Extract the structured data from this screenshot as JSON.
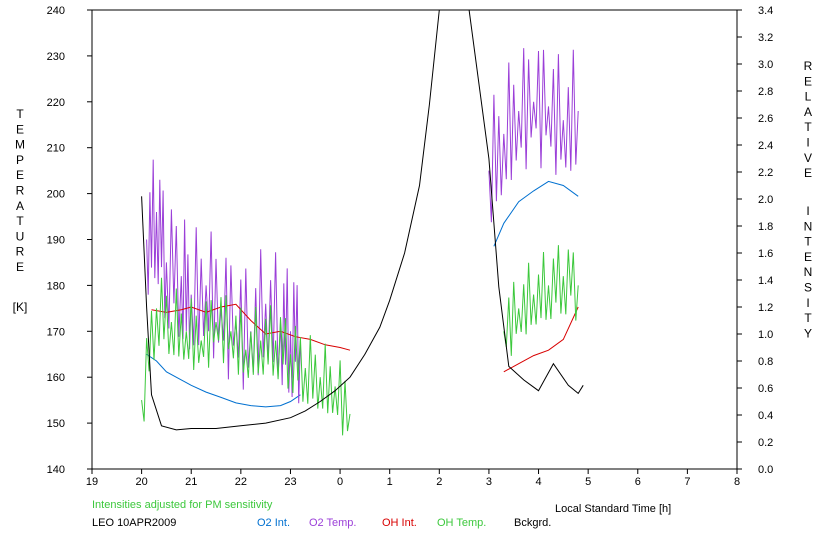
{
  "chart_data": {
    "type": "line",
    "left_axis_letters": [
      "T",
      "E",
      "M",
      "P",
      "E",
      "R",
      "A",
      "T",
      "U",
      "R",
      "E"
    ],
    "left_axis_unit": "[K]",
    "right_axis_letters": [
      "R",
      "E",
      "L",
      "A",
      "T",
      "I",
      "V",
      "E"
    ],
    "right_axis_letters2": [
      "I",
      "N",
      "T",
      "E",
      "N",
      "S",
      "I",
      "T",
      "Y"
    ],
    "xlabel": "Local Standard Time [h]",
    "x_tick_labels": [
      "19",
      "20",
      "21",
      "22",
      "23",
      "0",
      "1",
      "2",
      "3",
      "4",
      "5",
      "6",
      "7",
      "8"
    ],
    "y_left_ticks": [
      "140",
      "150",
      "160",
      "170",
      "180",
      "190",
      "200",
      "210",
      "220",
      "230",
      "240"
    ],
    "y_right_ticks": [
      "0.0",
      "0.2",
      "0.4",
      "0.6",
      "0.8",
      "1.0",
      "1.2",
      "1.4",
      "1.6",
      "1.8",
      "2.0",
      "2.2",
      "2.4",
      "2.6",
      "2.8",
      "3.0",
      "3.2",
      "3.4"
    ],
    "xlim": [
      19,
      32
    ],
    "ylim_left": [
      140,
      240
    ],
    "ylim_right": [
      0,
      3.4
    ],
    "note": "Intensities adjusted for PM sensitivity",
    "station": "LEO 10APR2009",
    "series": [
      {
        "name": "O2 Int.",
        "axis": "right",
        "color": "#0070d0",
        "x": [
          20.1,
          20.3,
          20.5,
          20.8,
          21.0,
          21.3,
          21.6,
          21.9,
          22.2,
          22.5,
          22.8,
          23.0,
          23.2,
          27.1,
          27.3,
          27.6,
          27.9,
          28.2,
          28.5,
          28.8
        ],
        "y": [
          0.85,
          0.8,
          0.72,
          0.66,
          0.62,
          0.57,
          0.53,
          0.49,
          0.47,
          0.46,
          0.47,
          0.5,
          0.55,
          1.65,
          1.82,
          1.98,
          2.06,
          2.13,
          2.1,
          2.02
        ]
      },
      {
        "name": "O2 Temp.",
        "axis": "left",
        "color": "#9b3fd8",
        "x": [
          20.1,
          20.3,
          20.5,
          20.8,
          21.0,
          21.3,
          21.6,
          21.9,
          22.2,
          22.5,
          22.8,
          23.0,
          23.2,
          27.0,
          27.3,
          27.6,
          27.9,
          28.2,
          28.5,
          28.8
        ],
        "y": [
          190,
          196,
          185,
          182,
          178,
          180,
          175,
          172,
          170,
          176,
          172,
          170,
          168,
          205,
          213,
          218,
          220,
          219,
          216,
          218
        ]
      },
      {
        "name": "OH Int.",
        "axis": "right",
        "color": "#d80000",
        "x": [
          20.2,
          20.5,
          20.8,
          21.0,
          21.3,
          21.6,
          21.9,
          22.2,
          22.5,
          22.8,
          23.1,
          23.4,
          23.7,
          24.0,
          24.2,
          27.3,
          27.6,
          27.9,
          28.2,
          28.5,
          28.8
        ],
        "y": [
          1.18,
          1.16,
          1.18,
          1.2,
          1.16,
          1.2,
          1.22,
          1.1,
          1.0,
          1.02,
          0.98,
          0.96,
          0.92,
          0.9,
          0.88,
          0.72,
          0.78,
          0.84,
          0.88,
          0.96,
          1.2
        ]
      },
      {
        "name": "OH Temp.",
        "axis": "left",
        "color": "#3cc83c",
        "x": [
          20.0,
          20.3,
          20.6,
          20.9,
          21.2,
          21.5,
          21.8,
          22.1,
          22.4,
          22.7,
          23.0,
          23.3,
          23.6,
          23.9,
          24.2,
          27.3,
          27.6,
          27.9,
          28.2,
          28.5,
          28.8
        ],
        "y": [
          155,
          175,
          172,
          170,
          168,
          172,
          170,
          166,
          168,
          168,
          165,
          162,
          160,
          158,
          152,
          170,
          175,
          178,
          180,
          182,
          180
        ]
      },
      {
        "name": "Bckgrd.",
        "axis": "right",
        "color": "#000000",
        "x": [
          20.0,
          20.1,
          20.2,
          20.4,
          20.7,
          21.0,
          21.5,
          22.0,
          22.5,
          23.0,
          23.3,
          23.6,
          23.9,
          24.2,
          24.5,
          24.8,
          25.0,
          25.3,
          25.6,
          25.8,
          26.0,
          26.3,
          26.6,
          27.0,
          27.2,
          27.4,
          27.7,
          28.0,
          28.3,
          28.6,
          28.8,
          28.9
        ],
        "y": [
          2.02,
          1.2,
          0.55,
          0.32,
          0.29,
          0.3,
          0.3,
          0.32,
          0.34,
          0.38,
          0.43,
          0.5,
          0.58,
          0.68,
          0.85,
          1.05,
          1.25,
          1.6,
          2.1,
          2.7,
          3.4,
          3.4,
          3.4,
          2.3,
          1.35,
          0.76,
          0.66,
          0.58,
          0.78,
          0.62,
          0.56,
          0.62
        ]
      }
    ]
  }
}
